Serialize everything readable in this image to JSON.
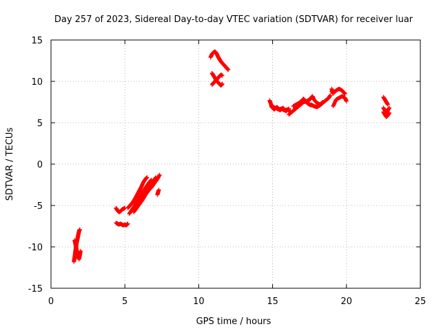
{
  "chart_data": {
    "type": "scatter",
    "title": "Day 257 of 2023, Sidereal Day-to-day VTEC variation (SDTVAR) for receiver luar",
    "xlabel": "GPS time / hours",
    "ylabel": "SDTVAR / TECUs",
    "xlim": [
      0,
      25
    ],
    "ylim": [
      -15,
      15
    ],
    "xticks": [
      0,
      5,
      10,
      15,
      20,
      25
    ],
    "yticks": [
      -15,
      -10,
      -5,
      0,
      5,
      10,
      15
    ],
    "grid": true,
    "marker": "+",
    "marker_color": "#ff0000",
    "series": [
      {
        "name": "SDTVAR",
        "segments": [
          [
            [
              1.55,
              -11.8
            ],
            [
              1.6,
              -11.2
            ],
            [
              1.65,
              -10.5
            ],
            [
              1.7,
              -10.0
            ],
            [
              1.75,
              -9.4
            ],
            [
              1.8,
              -9.0
            ],
            [
              1.85,
              -8.5
            ],
            [
              1.9,
              -8.1
            ],
            [
              1.95,
              -7.9
            ]
          ],
          [
            [
              1.6,
              -9.2
            ],
            [
              1.65,
              -9.6
            ],
            [
              1.7,
              -10.1
            ],
            [
              1.75,
              -10.5
            ],
            [
              1.8,
              -10.9
            ],
            [
              1.85,
              -11.2
            ],
            [
              1.9,
              -11.5
            ],
            [
              1.95,
              -11.0
            ],
            [
              2.0,
              -10.5
            ]
          ],
          [
            [
              4.4,
              -5.3
            ],
            [
              4.5,
              -5.6
            ],
            [
              4.6,
              -5.8
            ],
            [
              4.7,
              -5.7
            ],
            [
              4.8,
              -5.5
            ],
            [
              4.9,
              -5.4
            ],
            [
              5.0,
              -5.3
            ]
          ],
          [
            [
              4.4,
              -7.1
            ],
            [
              4.5,
              -7.2
            ],
            [
              4.6,
              -7.3
            ],
            [
              4.7,
              -7.2
            ],
            [
              4.8,
              -7.3
            ],
            [
              4.9,
              -7.4
            ],
            [
              5.0,
              -7.3
            ],
            [
              5.1,
              -7.4
            ],
            [
              5.2,
              -7.2
            ]
          ],
          [
            [
              5.2,
              -5.3
            ],
            [
              5.35,
              -5.0
            ],
            [
              5.5,
              -4.7
            ],
            [
              5.65,
              -4.3
            ],
            [
              5.8,
              -3.8
            ],
            [
              5.95,
              -3.3
            ],
            [
              6.1,
              -2.8
            ],
            [
              6.25,
              -2.2
            ],
            [
              6.4,
              -1.8
            ],
            [
              6.5,
              -1.6
            ]
          ],
          [
            [
              5.3,
              -6.0
            ],
            [
              5.45,
              -5.6
            ],
            [
              5.6,
              -5.2
            ],
            [
              5.75,
              -4.8
            ],
            [
              5.9,
              -4.4
            ],
            [
              6.05,
              -3.9
            ],
            [
              6.2,
              -3.4
            ],
            [
              6.35,
              -3.0
            ],
            [
              6.5,
              -2.6
            ],
            [
              6.65,
              -2.2
            ],
            [
              6.8,
              -1.9
            ]
          ],
          [
            [
              5.6,
              -5.8
            ],
            [
              5.8,
              -5.3
            ],
            [
              6.0,
              -4.8
            ],
            [
              6.2,
              -4.3
            ],
            [
              6.4,
              -3.7
            ],
            [
              6.6,
              -3.2
            ],
            [
              6.8,
              -2.8
            ],
            [
              7.0,
              -2.3
            ],
            [
              7.2,
              -1.8
            ],
            [
              7.35,
              -1.3
            ]
          ],
          [
            [
              5.5,
              -5.5
            ],
            [
              5.7,
              -5.0
            ],
            [
              5.9,
              -4.6
            ],
            [
              6.1,
              -4.1
            ],
            [
              6.3,
              -3.6
            ],
            [
              6.5,
              -3.1
            ],
            [
              6.7,
              -2.6
            ],
            [
              6.9,
              -2.1
            ],
            [
              7.1,
              -1.6
            ]
          ],
          [
            [
              7.2,
              -3.7
            ],
            [
              7.25,
              -3.4
            ],
            [
              7.3,
              -3.1
            ]
          ],
          [
            [
              10.8,
              12.9
            ],
            [
              10.9,
              13.3
            ],
            [
              11.0,
              13.5
            ],
            [
              11.1,
              13.6
            ],
            [
              11.2,
              13.4
            ],
            [
              11.3,
              13.0
            ],
            [
              11.4,
              12.7
            ],
            [
              11.5,
              12.4
            ],
            [
              11.6,
              12.2
            ],
            [
              11.7,
              12.0
            ],
            [
              11.8,
              11.8
            ],
            [
              11.9,
              11.6
            ],
            [
              12.0,
              11.4
            ]
          ],
          [
            [
              10.9,
              11.0
            ],
            [
              11.0,
              10.7
            ],
            [
              11.1,
              10.4
            ],
            [
              11.2,
              10.1
            ],
            [
              11.3,
              9.9
            ],
            [
              11.4,
              9.7
            ],
            [
              11.5,
              9.5
            ],
            [
              11.6,
              9.7
            ]
          ],
          [
            [
              10.9,
              9.6
            ],
            [
              11.0,
              9.8
            ],
            [
              11.1,
              10.0
            ],
            [
              11.2,
              10.2
            ],
            [
              11.3,
              10.4
            ],
            [
              11.4,
              10.6
            ],
            [
              11.5,
              10.8
            ],
            [
              11.6,
              10.7
            ]
          ],
          [
            [
              14.8,
              7.7
            ],
            [
              14.9,
              7.2
            ],
            [
              15.0,
              6.9
            ],
            [
              15.2,
              6.8
            ],
            [
              15.4,
              6.6
            ],
            [
              15.6,
              6.7
            ],
            [
              15.8,
              6.5
            ],
            [
              16.0,
              6.6
            ],
            [
              16.2,
              6.4
            ]
          ],
          [
            [
              14.9,
              7.0
            ],
            [
              15.1,
              6.6
            ],
            [
              15.3,
              6.9
            ],
            [
              15.5,
              6.5
            ],
            [
              15.7,
              6.8
            ],
            [
              15.9,
              6.4
            ],
            [
              16.1,
              6.7
            ]
          ],
          [
            [
              16.1,
              6.0
            ],
            [
              16.3,
              6.3
            ],
            [
              16.5,
              6.6
            ],
            [
              16.7,
              6.9
            ],
            [
              16.9,
              7.2
            ],
            [
              17.1,
              7.5
            ],
            [
              17.3,
              7.6
            ],
            [
              17.5,
              7.8
            ]
          ],
          [
            [
              16.4,
              7.0
            ],
            [
              16.6,
              7.2
            ],
            [
              16.8,
              7.4
            ],
            [
              17.0,
              7.7
            ],
            [
              17.1,
              7.9
            ],
            [
              17.2,
              7.6
            ],
            [
              17.4,
              7.3
            ],
            [
              17.6,
              7.1
            ]
          ],
          [
            [
              17.6,
              7.2
            ],
            [
              17.8,
              7.0
            ],
            [
              18.0,
              6.9
            ],
            [
              18.2,
              7.1
            ],
            [
              18.4,
              7.4
            ],
            [
              18.6,
              7.7
            ],
            [
              18.8,
              8.0
            ],
            [
              18.9,
              8.3
            ]
          ],
          [
            [
              17.4,
              7.6
            ],
            [
              17.6,
              8.0
            ],
            [
              17.7,
              8.2
            ],
            [
              17.8,
              7.8
            ],
            [
              18.0,
              7.4
            ],
            [
              18.2,
              7.2
            ],
            [
              18.4,
              7.5
            ]
          ],
          [
            [
              19.0,
              8.8
            ],
            [
              19.1,
              8.6
            ],
            [
              19.3,
              8.9
            ],
            [
              19.5,
              9.1
            ],
            [
              19.7,
              8.9
            ],
            [
              19.8,
              8.7
            ],
            [
              19.9,
              8.5
            ]
          ],
          [
            [
              19.1,
              7.0
            ],
            [
              19.3,
              7.8
            ],
            [
              19.5,
              8.0
            ],
            [
              19.7,
              8.2
            ],
            [
              19.9,
              8.0
            ],
            [
              20.0,
              7.6
            ]
          ],
          [
            [
              19.0,
              9.1
            ],
            [
              19.05,
              8.8
            ],
            [
              19.1,
              8.5
            ]
          ],
          [
            [
              22.5,
              8.1
            ],
            [
              22.6,
              7.8
            ],
            [
              22.7,
              7.5
            ],
            [
              22.8,
              7.2
            ]
          ],
          [
            [
              22.5,
              6.8
            ],
            [
              22.6,
              6.5
            ],
            [
              22.7,
              6.2
            ],
            [
              22.8,
              6.5
            ],
            [
              22.9,
              6.8
            ]
          ],
          [
            [
              22.5,
              6.3
            ],
            [
              22.6,
              6.0
            ],
            [
              22.7,
              5.7
            ],
            [
              22.8,
              5.9
            ],
            [
              22.9,
              6.2
            ]
          ]
        ]
      }
    ]
  }
}
